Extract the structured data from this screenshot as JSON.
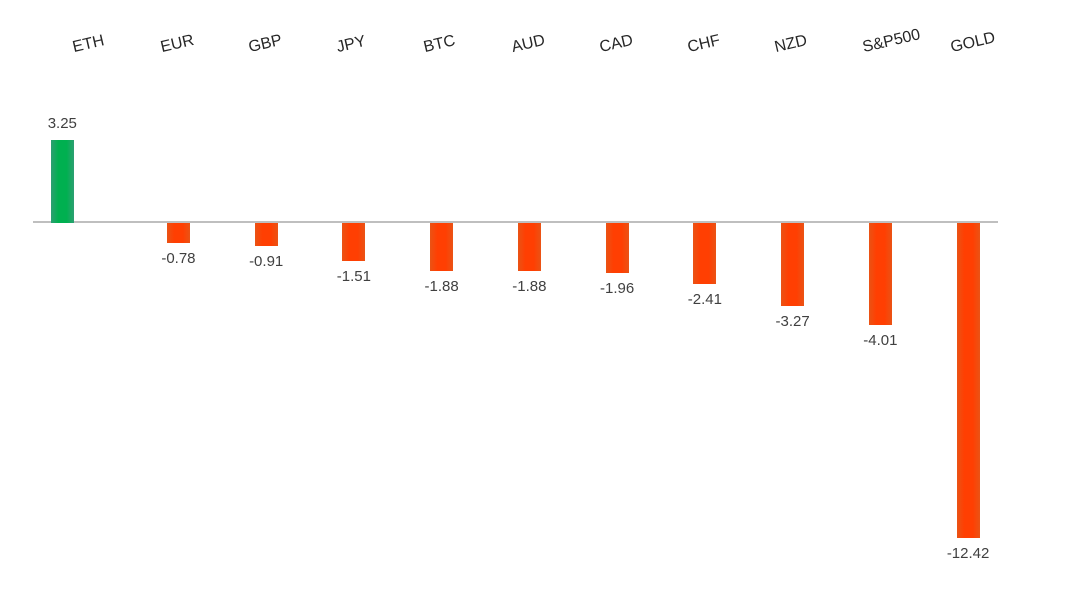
{
  "chart_data": {
    "type": "bar",
    "categories": [
      "ETH",
      "EUR",
      "GBP",
      "JPY",
      "BTC",
      "AUD",
      "CAD",
      "CHF",
      "NZD",
      "S&P500",
      "GOLD"
    ],
    "values": [
      3.25,
      -0.78,
      -0.91,
      -1.51,
      -1.88,
      -1.88,
      -1.96,
      -2.41,
      -3.27,
      -4.01,
      -12.42
    ],
    "data_labels": [
      "3.25",
      "-0.78",
      "-0.91",
      "-1.51",
      "-1.88",
      "-1.88",
      "-1.96",
      "-2.41",
      "-3.27",
      "-4.01",
      "-12.42"
    ],
    "title": "",
    "xlabel": "",
    "ylabel": "",
    "ylim": [
      -13,
      4
    ],
    "grid": false,
    "legend": false,
    "baseline": 0,
    "colors": {
      "positive_fill": "#00b050",
      "positive_edge": "#2d9f72",
      "negative_fill": "#ff3f02",
      "negative_edge": "#ea5315",
      "axis_line": "#bfbfbf",
      "value_label_text": "#404040",
      "category_label_text": "#262626"
    }
  }
}
